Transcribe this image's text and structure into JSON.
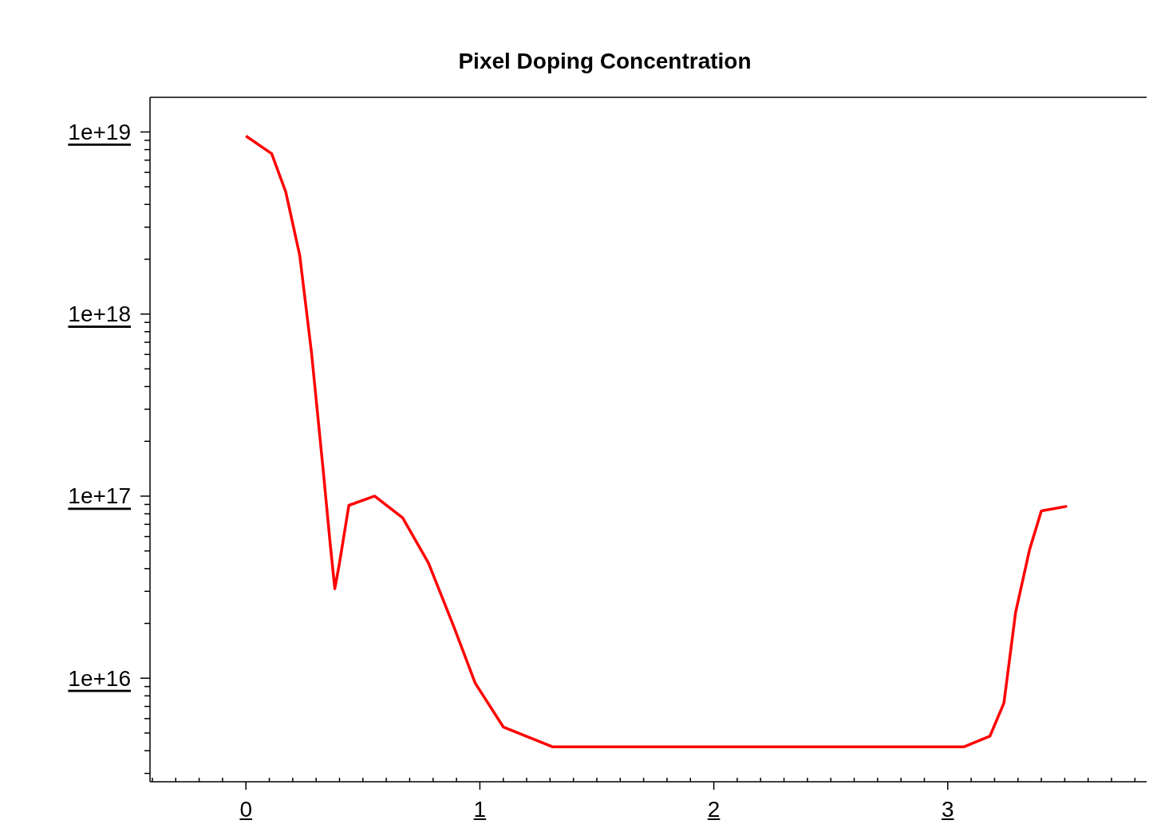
{
  "chart_data": {
    "type": "line",
    "title": "Pixel Doping Concentration",
    "log": "y",
    "grid": false,
    "legend": false,
    "marker": "none",
    "line_style": "solid",
    "xlim": [
      -0.41,
      3.85
    ],
    "ylim": [
      2700000000000000.0,
      1.55e+19
    ],
    "xticks": [
      {
        "value": -0.4,
        "label": null
      },
      {
        "value": -0.3,
        "label": null
      },
      {
        "value": -0.2,
        "label": null
      },
      {
        "value": -0.1,
        "label": null
      },
      0,
      {
        "value": 0.1,
        "label": null
      },
      {
        "value": 0.2,
        "label": null
      },
      {
        "value": 0.3,
        "label": null
      },
      {
        "value": 0.4,
        "label": null
      },
      {
        "value": 0.5,
        "label": null
      },
      {
        "value": 0.6,
        "label": null
      },
      {
        "value": 0.7,
        "label": null
      },
      {
        "value": 0.8,
        "label": null
      },
      {
        "value": 0.9,
        "label": null
      },
      1,
      {
        "value": 1.1,
        "label": null
      },
      {
        "value": 1.2,
        "label": null
      },
      {
        "value": 1.3,
        "label": null
      },
      {
        "value": 1.4,
        "label": null
      },
      {
        "value": 1.5,
        "label": null
      },
      {
        "value": 1.6,
        "label": null
      },
      {
        "value": 1.7,
        "label": null
      },
      {
        "value": 1.8,
        "label": null
      },
      {
        "value": 1.9,
        "label": null
      },
      2,
      {
        "value": 2.1,
        "label": null
      },
      {
        "value": 2.2,
        "label": null
      },
      {
        "value": 2.3,
        "label": null
      },
      {
        "value": 2.4,
        "label": null
      },
      {
        "value": 2.5,
        "label": null
      },
      {
        "value": 2.6,
        "label": null
      },
      {
        "value": 2.7,
        "label": null
      },
      {
        "value": 2.8,
        "label": null
      },
      {
        "value": 2.9,
        "label": null
      },
      3,
      {
        "value": 3.1,
        "label": null
      },
      {
        "value": 3.2,
        "label": null
      },
      {
        "value": 3.3,
        "label": null
      },
      {
        "value": 3.4,
        "label": null
      },
      {
        "value": 3.5,
        "label": null
      },
      {
        "value": 3.6,
        "label": null
      },
      {
        "value": 3.7,
        "label": null
      },
      {
        "value": 3.8,
        "label": null
      }
    ],
    "yticks": [
      {
        "value": 3000000000000000.0,
        "label": null
      },
      {
        "value": 4000000000000000.0,
        "label": null
      },
      {
        "value": 5000000000000000.0,
        "label": null
      },
      {
        "value": 6000000000000000.0,
        "label": null
      },
      {
        "value": 7000000000000000.0,
        "label": null
      },
      {
        "value": 8000000000000000.0,
        "label": null
      },
      {
        "value": 9000000000000000.0,
        "label": null
      },
      {
        "value": 1e+16,
        "label": "1e+16"
      },
      {
        "value": 2e+16,
        "label": null
      },
      {
        "value": 3e+16,
        "label": null
      },
      {
        "value": 4e+16,
        "label": null
      },
      {
        "value": 5e+16,
        "label": null
      },
      {
        "value": 6e+16,
        "label": null
      },
      {
        "value": 7e+16,
        "label": null
      },
      {
        "value": 8e+16,
        "label": null
      },
      {
        "value": 9e+16,
        "label": null
      },
      {
        "value": 1e+17,
        "label": "1e+17"
      },
      {
        "value": 2e+17,
        "label": null
      },
      {
        "value": 3e+17,
        "label": null
      },
      {
        "value": 4e+17,
        "label": null
      },
      {
        "value": 5e+17,
        "label": null
      },
      {
        "value": 6e+17,
        "label": null
      },
      {
        "value": 7e+17,
        "label": null
      },
      {
        "value": 8e+17,
        "label": null
      },
      {
        "value": 9e+17,
        "label": null
      },
      {
        "value": 1e+18,
        "label": "1e+18"
      },
      {
        "value": 2e+18,
        "label": null
      },
      {
        "value": 3e+18,
        "label": null
      },
      {
        "value": 4e+18,
        "label": null
      },
      {
        "value": 5e+18,
        "label": null
      },
      {
        "value": 6e+18,
        "label": null
      },
      {
        "value": 7e+18,
        "label": null
      },
      {
        "value": 8e+18,
        "label": null
      },
      {
        "value": 9e+18,
        "label": null
      },
      {
        "value": 1e+19,
        "label": "1e+19"
      }
    ],
    "x": [
      0,
      0.11,
      0.17,
      0.23,
      0.28,
      0.33,
      0.36,
      0.38,
      0.4,
      0.44,
      0.55,
      0.67,
      0.78,
      0.89,
      0.98,
      1.1,
      1.31,
      3.07,
      3.18,
      3.24,
      3.29,
      3.35,
      3.4,
      3.51
    ],
    "series": [
      {
        "color": "#ff0000",
        "values": [
          9.5e+18,
          7.6e+18,
          4.7e+18,
          2.1e+18,
          6.2e+17,
          1.4e+17,
          5.5e+16,
          3.1e+16,
          4.3e+16,
          8.9e+16,
          1e+17,
          7.6e+16,
          4.3e+16,
          1.9e+16,
          9400000000000000.0,
          5400000000000000.0,
          4200000000000000.0,
          4200000000000000.0,
          4800000000000000.0,
          7300000000000000.0,
          2.3e+16,
          5.1e+16,
          8.3e+16,
          8.8e+16
        ]
      }
    ]
  }
}
